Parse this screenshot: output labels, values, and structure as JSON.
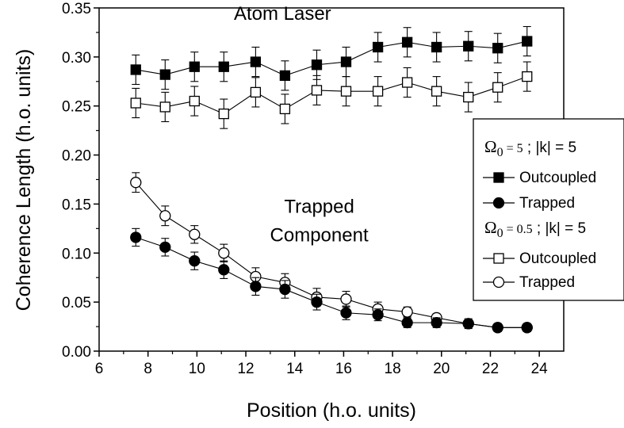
{
  "chart_data": {
    "type": "scatter",
    "xlabel": "Position  (h.o. units)",
    "ylabel": "Coherence Length  (h.o. units)",
    "xlim": [
      6,
      25
    ],
    "ylim": [
      0.0,
      0.35
    ],
    "x_ticks": [
      6,
      8,
      10,
      12,
      14,
      16,
      18,
      20,
      22,
      24
    ],
    "y_ticks": [
      0.0,
      0.05,
      0.1,
      0.15,
      0.2,
      0.25,
      0.3,
      0.35
    ],
    "x_tick_labels": [
      "6",
      "8",
      "10",
      "12",
      "14",
      "16",
      "18",
      "20",
      "22",
      "24"
    ],
    "y_tick_labels": [
      "0.00",
      "0.05",
      "0.10",
      "0.15",
      "0.20",
      "0.25",
      "0.30",
      "0.35"
    ],
    "grid": false,
    "legend_position": "right",
    "annotations": [
      {
        "text": "Atom Laser",
        "x": 13.5,
        "y": 0.338
      },
      {
        "text": "Trapped",
        "x": 15.0,
        "y": 0.141
      },
      {
        "text": "Component",
        "x": 15.0,
        "y": 0.112
      }
    ],
    "legend": {
      "group1_header": {
        "symbol": "Ω",
        "sub": "0",
        "param": " = 5",
        "rest": " ;  |k| = 5"
      },
      "group2_header": {
        "symbol": "Ω",
        "sub": "0",
        "param": " = 0.5",
        "rest": " ;  |k| = 5"
      }
    },
    "series": [
      {
        "name": "Outcoupled",
        "group": 1,
        "marker": "square",
        "filled": true,
        "x": [
          7.5,
          8.7,
          9.9,
          11.1,
          12.4,
          13.6,
          14.9,
          16.1,
          17.4,
          18.6,
          19.8,
          21.1,
          22.3,
          23.5
        ],
        "y": [
          0.287,
          0.282,
          0.29,
          0.29,
          0.295,
          0.281,
          0.292,
          0.295,
          0.31,
          0.315,
          0.31,
          0.311,
          0.309,
          0.316
        ],
        "err": [
          0.015,
          0.015,
          0.015,
          0.015,
          0.015,
          0.015,
          0.015,
          0.015,
          0.015,
          0.015,
          0.015,
          0.015,
          0.015,
          0.015
        ]
      },
      {
        "name": "Trapped",
        "group": 1,
        "marker": "circle",
        "filled": true,
        "x": [
          7.5,
          8.7,
          9.9,
          11.1,
          12.4,
          13.6,
          14.9,
          16.1,
          17.4,
          18.6,
          19.8,
          21.1,
          22.3,
          23.5
        ],
        "y": [
          0.116,
          0.106,
          0.092,
          0.083,
          0.066,
          0.063,
          0.05,
          0.039,
          0.037,
          0.029,
          0.029,
          0.028,
          0.024,
          0.024
        ],
        "err": [
          0.009,
          0.009,
          0.009,
          0.009,
          0.009,
          0.009,
          0.008,
          0.007,
          0.006,
          0.005,
          0.005,
          0.005,
          0.004,
          0.004
        ]
      },
      {
        "name": "Outcoupled",
        "group": 2,
        "marker": "square",
        "filled": false,
        "x": [
          7.5,
          8.7,
          9.9,
          11.1,
          12.4,
          13.6,
          14.9,
          16.1,
          17.4,
          18.6,
          19.8,
          21.1,
          22.3,
          23.5
        ],
        "y": [
          0.253,
          0.249,
          0.255,
          0.242,
          0.264,
          0.247,
          0.266,
          0.265,
          0.265,
          0.274,
          0.265,
          0.259,
          0.269,
          0.28
        ],
        "err": [
          0.015,
          0.015,
          0.015,
          0.015,
          0.015,
          0.015,
          0.015,
          0.015,
          0.015,
          0.015,
          0.015,
          0.015,
          0.015,
          0.015
        ]
      },
      {
        "name": "Trapped",
        "group": 2,
        "marker": "circle",
        "filled": false,
        "x": [
          7.5,
          8.7,
          9.9,
          11.1,
          12.4,
          13.6,
          14.9,
          16.1,
          17.4,
          18.6,
          19.8,
          21.1,
          22.3,
          23.5
        ],
        "y": [
          0.172,
          0.138,
          0.119,
          0.1,
          0.076,
          0.07,
          0.055,
          0.053,
          0.043,
          0.04,
          0.034,
          0.028,
          0.024,
          0.024
        ],
        "err": [
          0.01,
          0.01,
          0.009,
          0.009,
          0.009,
          0.009,
          0.009,
          0.008,
          0.007,
          0.005,
          0.004,
          0.004,
          0.004,
          0.004
        ]
      }
    ]
  }
}
